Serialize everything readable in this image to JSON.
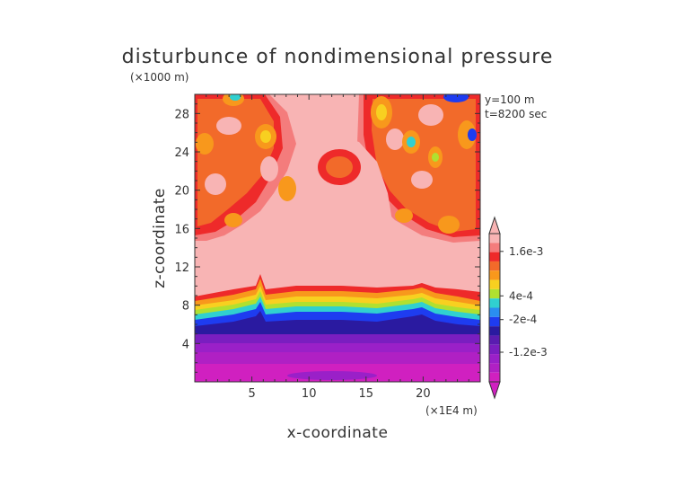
{
  "chart_data": {
    "type": "heatmap",
    "title": "disturbunce of nondimensional pressure",
    "xlabel": "x-coordinate",
    "ylabel": "z-coordinate",
    "x_unit": "(×1E4 m)",
    "y_unit": "(×1000 m)",
    "xlim": [
      0,
      25
    ],
    "ylim": [
      0,
      30
    ],
    "x_ticks": [
      "5",
      "10",
      "15",
      "20"
    ],
    "y_ticks": [
      "4",
      "8",
      "12",
      "16",
      "20",
      "24",
      "28"
    ],
    "annotations": [
      "y=100 m",
      "t=8200 sec"
    ],
    "colorbar_labels": [
      "1.6e-3",
      "4e-4",
      "-2e-4",
      "-1.2e-3"
    ],
    "colorbar_colors": [
      "#f8b4b4",
      "#f47c7c",
      "#ee2a2a",
      "#f26a2a",
      "#f8981c",
      "#f8d020",
      "#b0e030",
      "#30d0d0",
      "#2a8ef0",
      "#1e3cf0",
      "#2a1aa0",
      "#5a1cb0",
      "#7a1ec0",
      "#9a20c8",
      "#b020c4",
      "#d020c0"
    ],
    "pressure_levels": {
      "upper_pale_region": "~1.6e-3",
      "orange_red_cells": "4e-4 to 1.6e-3",
      "transition_band_z_km": [
        6,
        10
      ],
      "lower_magenta_region": "-1.2e-3 and below"
    }
  }
}
